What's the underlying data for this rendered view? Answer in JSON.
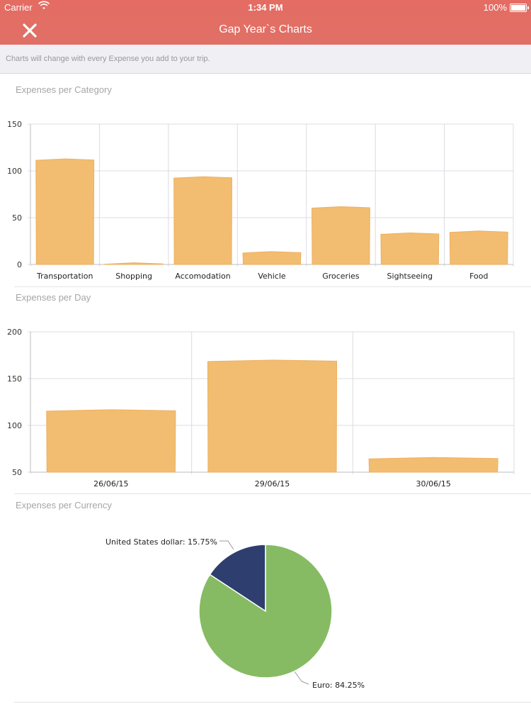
{
  "status_bar": {
    "carrier": "Carrier",
    "time": "1:34 PM",
    "battery": "100%"
  },
  "header": {
    "title": "Gap Year`s Charts",
    "close_icon": "close-icon"
  },
  "subtitle": "Charts will change with every Expense you add to your trip.",
  "colors": {
    "header": "#e46c63",
    "bar": "#f2bd70",
    "euro": "#86bb63",
    "usd": "#2e3e6f"
  },
  "sections": {
    "category": "Expenses per Category",
    "day": "Expenses per Day",
    "currency": "Expenses per Currency"
  },
  "chart_data": [
    {
      "type": "bar",
      "title": "Expenses per Category",
      "categories": [
        "Transportation",
        "Shopping",
        "Accomodation",
        "Vehicle",
        "Groceries",
        "Sightseeing",
        "Food"
      ],
      "values": [
        112,
        1,
        93,
        13,
        61,
        33,
        35
      ],
      "ylim": [
        0,
        150
      ],
      "yticks": [
        0,
        50,
        100,
        150
      ]
    },
    {
      "type": "bar",
      "title": "Expenses per Day",
      "categories": [
        "26/06/15",
        "29/06/15",
        "30/06/15"
      ],
      "values": [
        116,
        169,
        65
      ],
      "ylim": [
        50,
        200
      ],
      "yticks": [
        50,
        100,
        150,
        200
      ]
    },
    {
      "type": "pie",
      "title": "Expenses per Currency",
      "slices": [
        {
          "name": "United States dollar",
          "value": 15.75,
          "label": "United States dollar: 15.75%"
        },
        {
          "name": "Euro",
          "value": 84.25,
          "label": "Euro: 84.25%"
        }
      ]
    }
  ]
}
